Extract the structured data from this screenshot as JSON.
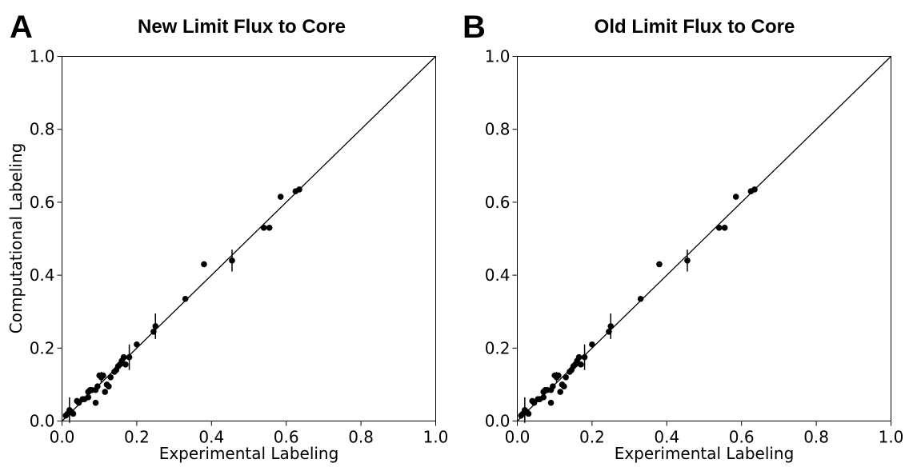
{
  "figure": {
    "panels": [
      {
        "letter": "A",
        "title": "New Limit Flux to Core"
      },
      {
        "letter": "B",
        "title": "Old Limit Flux to Core"
      }
    ]
  },
  "chart_data": [
    {
      "type": "scatter",
      "title": "New Limit Flux to Core",
      "xlabel": "Experimental Labeling",
      "ylabel": "Computational Labeling",
      "xlim": [
        0.0,
        1.0
      ],
      "ylim": [
        0.0,
        1.0
      ],
      "xticks": [
        "0.0",
        "0.2",
        "0.4",
        "0.6",
        "0.8",
        "1.0"
      ],
      "yticks": [
        "0.0",
        "0.2",
        "0.4",
        "0.6",
        "0.8",
        "1.0"
      ],
      "grid": false,
      "reference_line": "y = x",
      "points": [
        {
          "x": 0.01,
          "y": 0.015
        },
        {
          "x": 0.015,
          "y": 0.02
        },
        {
          "x": 0.02,
          "y": 0.03,
          "yerr": 0.035
        },
        {
          "x": 0.025,
          "y": 0.025
        },
        {
          "x": 0.03,
          "y": 0.02
        },
        {
          "x": 0.04,
          "y": 0.055
        },
        {
          "x": 0.045,
          "y": 0.05
        },
        {
          "x": 0.055,
          "y": 0.06
        },
        {
          "x": 0.06,
          "y": 0.06
        },
        {
          "x": 0.07,
          "y": 0.065
        },
        {
          "x": 0.07,
          "y": 0.08
        },
        {
          "x": 0.075,
          "y": 0.085
        },
        {
          "x": 0.08,
          "y": 0.085
        },
        {
          "x": 0.09,
          "y": 0.085
        },
        {
          "x": 0.09,
          "y": 0.05
        },
        {
          "x": 0.095,
          "y": 0.095
        },
        {
          "x": 0.1,
          "y": 0.125
        },
        {
          "x": 0.105,
          "y": 0.12,
          "yerr": 0.015
        },
        {
          "x": 0.11,
          "y": 0.125
        },
        {
          "x": 0.115,
          "y": 0.08
        },
        {
          "x": 0.12,
          "y": 0.1
        },
        {
          "x": 0.125,
          "y": 0.095
        },
        {
          "x": 0.13,
          "y": 0.12
        },
        {
          "x": 0.14,
          "y": 0.135
        },
        {
          "x": 0.145,
          "y": 0.14
        },
        {
          "x": 0.15,
          "y": 0.15
        },
        {
          "x": 0.155,
          "y": 0.155
        },
        {
          "x": 0.16,
          "y": 0.165
        },
        {
          "x": 0.165,
          "y": 0.175
        },
        {
          "x": 0.17,
          "y": 0.155
        },
        {
          "x": 0.18,
          "y": 0.175,
          "yerr": 0.035
        },
        {
          "x": 0.2,
          "y": 0.21
        },
        {
          "x": 0.245,
          "y": 0.245
        },
        {
          "x": 0.25,
          "y": 0.26,
          "yerr": 0.035
        },
        {
          "x": 0.33,
          "y": 0.335
        },
        {
          "x": 0.38,
          "y": 0.43
        },
        {
          "x": 0.455,
          "y": 0.44,
          "yerr": 0.03
        },
        {
          "x": 0.54,
          "y": 0.53
        },
        {
          "x": 0.555,
          "y": 0.53
        },
        {
          "x": 0.585,
          "y": 0.615
        },
        {
          "x": 0.625,
          "y": 0.63
        },
        {
          "x": 0.635,
          "y": 0.635
        }
      ]
    },
    {
      "type": "scatter",
      "title": "Old Limit Flux to Core",
      "xlabel": "Experimental Labeling",
      "ylabel": "",
      "xlim": [
        0.0,
        1.0
      ],
      "ylim": [
        0.0,
        1.0
      ],
      "xticks": [
        "0.0",
        "0.2",
        "0.4",
        "0.6",
        "0.8",
        "1.0"
      ],
      "yticks": [
        "0.0",
        "0.2",
        "0.4",
        "0.6",
        "0.8",
        "1.0"
      ],
      "grid": false,
      "reference_line": "y = x",
      "points": [
        {
          "x": 0.01,
          "y": 0.015
        },
        {
          "x": 0.015,
          "y": 0.02
        },
        {
          "x": 0.02,
          "y": 0.03,
          "yerr": 0.035
        },
        {
          "x": 0.025,
          "y": 0.025
        },
        {
          "x": 0.03,
          "y": 0.02
        },
        {
          "x": 0.04,
          "y": 0.055
        },
        {
          "x": 0.045,
          "y": 0.05
        },
        {
          "x": 0.055,
          "y": 0.06
        },
        {
          "x": 0.06,
          "y": 0.06
        },
        {
          "x": 0.07,
          "y": 0.065
        },
        {
          "x": 0.07,
          "y": 0.08
        },
        {
          "x": 0.075,
          "y": 0.085
        },
        {
          "x": 0.08,
          "y": 0.085
        },
        {
          "x": 0.09,
          "y": 0.085
        },
        {
          "x": 0.09,
          "y": 0.05
        },
        {
          "x": 0.095,
          "y": 0.095
        },
        {
          "x": 0.1,
          "y": 0.125
        },
        {
          "x": 0.105,
          "y": 0.12,
          "yerr": 0.015
        },
        {
          "x": 0.11,
          "y": 0.125
        },
        {
          "x": 0.115,
          "y": 0.08
        },
        {
          "x": 0.12,
          "y": 0.1
        },
        {
          "x": 0.125,
          "y": 0.095
        },
        {
          "x": 0.13,
          "y": 0.12
        },
        {
          "x": 0.14,
          "y": 0.135
        },
        {
          "x": 0.145,
          "y": 0.14
        },
        {
          "x": 0.15,
          "y": 0.15
        },
        {
          "x": 0.155,
          "y": 0.155
        },
        {
          "x": 0.16,
          "y": 0.165
        },
        {
          "x": 0.165,
          "y": 0.175
        },
        {
          "x": 0.17,
          "y": 0.155
        },
        {
          "x": 0.18,
          "y": 0.175,
          "yerr": 0.035
        },
        {
          "x": 0.2,
          "y": 0.21
        },
        {
          "x": 0.245,
          "y": 0.245
        },
        {
          "x": 0.25,
          "y": 0.26,
          "yerr": 0.035
        },
        {
          "x": 0.33,
          "y": 0.335
        },
        {
          "x": 0.38,
          "y": 0.43
        },
        {
          "x": 0.455,
          "y": 0.44,
          "yerr": 0.03
        },
        {
          "x": 0.54,
          "y": 0.53
        },
        {
          "x": 0.555,
          "y": 0.53
        },
        {
          "x": 0.585,
          "y": 0.615
        },
        {
          "x": 0.625,
          "y": 0.63
        },
        {
          "x": 0.635,
          "y": 0.635
        }
      ]
    }
  ]
}
